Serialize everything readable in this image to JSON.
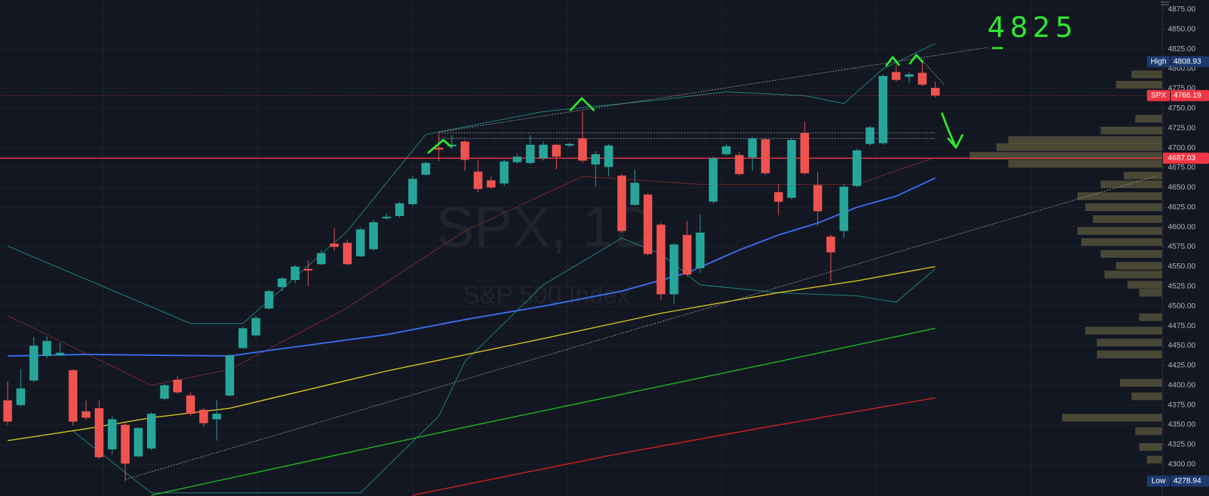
{
  "chart_data": {
    "type": "candlestick",
    "watermark_title": "SPX, 1D",
    "watermark_subtitle": "S&P 500 Index",
    "annotation": "4825",
    "up_color": "#26a69a",
    "down_color": "#ef5350",
    "grid": true,
    "ylim": [
      4260,
      4887
    ],
    "yticks": [
      {
        "value": 4300,
        "label": "4300.00"
      },
      {
        "value": 4325,
        "label": "4325.00"
      },
      {
        "value": 4350,
        "label": "4350.00"
      },
      {
        "value": 4375,
        "label": "4375.00"
      },
      {
        "value": 4400,
        "label": "4400.00"
      },
      {
        "value": 4425,
        "label": "4425.00"
      },
      {
        "value": 4450,
        "label": "4450.00"
      },
      {
        "value": 4475,
        "label": "4475.00"
      },
      {
        "value": 4500,
        "label": "4500.00"
      },
      {
        "value": 4525,
        "label": "4525.00"
      },
      {
        "value": 4550,
        "label": "4550.00"
      },
      {
        "value": 4575,
        "label": "4575.00"
      },
      {
        "value": 4600,
        "label": "4600.00"
      },
      {
        "value": 4625,
        "label": "4625.00"
      },
      {
        "value": 4650,
        "label": "4650.00"
      },
      {
        "value": 4675,
        "label": "4675.00"
      },
      {
        "value": 4700,
        "label": "4700.00"
      },
      {
        "value": 4725,
        "label": "4725.00"
      },
      {
        "value": 4750,
        "label": "4750.00"
      },
      {
        "value": 4775,
        "label": "4775.00"
      },
      {
        "value": 4800,
        "label": "4800.00"
      },
      {
        "value": 4825,
        "label": "4825.00"
      },
      {
        "value": 4850,
        "label": "4850.00"
      },
      {
        "value": 4875,
        "label": "4875.00"
      }
    ],
    "open": [
      4381,
      4375,
      4406,
      4437,
      4438,
      4419,
      4367,
      4371,
      4319,
      4350,
      4310,
      4320,
      4383,
      4407,
      4387,
      4369,
      4357,
      4387,
      4447,
      4463,
      4497,
      4524,
      4533,
      4547,
      4553,
      4579,
      4580,
      4563,
      4572,
      4611,
      4614,
      4629,
      4666,
      4700,
      4702,
      4708,
      4670,
      4659,
      4655,
      4682,
      4681,
      4687,
      4704,
      4703,
      4712,
      4679,
      4676,
      4665,
      4628,
      4641,
      4603,
      4515,
      4590,
      4548,
      4632,
      4692,
      4691,
      4688,
      4711,
      4644,
      4637,
      4719,
      4653,
      4588,
      4595,
      4652,
      4705,
      4706,
      4796,
      4790,
      4795,
      4776
    ],
    "high": [
      4405,
      4420,
      4461,
      4462,
      4454,
      4420,
      4381,
      4381,
      4361,
      4352,
      4347,
      4366,
      4402,
      4412,
      4391,
      4371,
      4381,
      4439,
      4474,
      4488,
      4521,
      4537,
      4552,
      4558,
      4571,
      4599,
      4584,
      4599,
      4609,
      4617,
      4632,
      4664,
      4683,
      4718,
      4716,
      4710,
      4685,
      4664,
      4685,
      4693,
      4716,
      4708,
      4705,
      4707,
      4746,
      4696,
      4705,
      4667,
      4673,
      4643,
      4605,
      4580,
      4608,
      4616,
      4689,
      4705,
      4695,
      4714,
      4713,
      4654,
      4712,
      4733,
      4670,
      4590,
      4654,
      4699,
      4728,
      4793,
      4805,
      4796,
      4808.93,
      4784
    ],
    "low": [
      4350,
      4373,
      4404,
      4434,
      4437,
      4349,
      4356,
      4307,
      4313,
      4278.94,
      4309,
      4318,
      4381,
      4389,
      4361,
      4347,
      4330,
      4386,
      4446,
      4461,
      4496,
      4519,
      4529,
      4525,
      4552,
      4570,
      4552,
      4562,
      4570,
      4609,
      4612,
      4627,
      4665,
      4683,
      4698,
      4671,
      4644,
      4648,
      4652,
      4680,
      4679,
      4684,
      4673,
      4701,
      4681,
      4651,
      4664,
      4593,
      4627,
      4564,
      4508,
      4503,
      4537,
      4542,
      4630,
      4690,
      4665,
      4671,
      4666,
      4615,
      4635,
      4666,
      4602,
      4531,
      4586,
      4650,
      4703,
      4704,
      4784,
      4782,
      4778,
      4764
    ],
    "close": [
      4354,
      4396,
      4450,
      4456,
      4441,
      4354,
      4359,
      4309,
      4357,
      4301,
      4346,
      4364,
      4400,
      4391,
      4364,
      4352,
      4364,
      4438,
      4472,
      4485,
      4519,
      4535,
      4550,
      4545,
      4567,
      4575,
      4553,
      4597,
      4606,
      4613,
      4630,
      4661,
      4681,
      4698,
      4704,
      4685,
      4648,
      4650,
      4683,
      4689,
      4704,
      4704,
      4689,
      4705,
      4684,
      4692,
      4703,
      4595,
      4656,
      4566,
      4515,
      4578,
      4540,
      4593,
      4687,
      4702,
      4667,
      4712,
      4668,
      4632,
      4710,
      4668,
      4620,
      4568,
      4651,
      4697,
      4726,
      4791,
      4786,
      4793,
      4780,
      4766.19
    ],
    "overlays": [
      {
        "color": "#1d8a7e",
        "width": 1,
        "x": [
          0,
          14,
          18,
          26,
          32,
          41,
          50,
          55,
          61,
          64,
          67,
          71
        ],
        "values": [
          4576,
          4478,
          4478,
          4595,
          4717,
          4746,
          4761,
          4771,
          4766,
          4756,
          4800,
          4832
        ]
      },
      {
        "color": "#7a2a2a",
        "width": 1,
        "x": [
          0,
          11,
          17,
          26,
          35,
          44,
          53,
          59,
          65,
          71
        ],
        "values": [
          4488,
          4400,
          4420,
          4498,
          4595,
          4664,
          4654,
          4654,
          4654,
          4688
        ]
      },
      {
        "color": "#1d8a7e",
        "width": 1,
        "x": [
          5,
          11,
          27,
          33,
          35,
          41,
          47,
          50,
          53,
          59,
          65,
          68,
          71
        ],
        "values": [
          4342,
          4264,
          4264,
          4361,
          4430,
          4527,
          4586,
          4566,
          4527,
          4517,
          4513,
          4505,
          4547
        ]
      },
      {
        "color": "#3b6ef0",
        "width": 2,
        "x": [
          0,
          6,
          11,
          17,
          20,
          29,
          35,
          41,
          47,
          52,
          56,
          59,
          62,
          65,
          68,
          71
        ],
        "values": [
          4437,
          4439,
          4438,
          4437,
          4444,
          4464,
          4483,
          4500,
          4519,
          4542,
          4571,
          4590,
          4605,
          4625,
          4639,
          4662
        ]
      },
      {
        "color": "#d4c21c",
        "width": 1.5,
        "x": [
          0,
          6,
          11,
          17,
          29,
          41,
          50,
          59,
          65,
          71
        ],
        "values": [
          4330,
          4345,
          4359,
          4371,
          4418,
          4459,
          4491,
          4517,
          4532,
          4550
        ]
      },
      {
        "color": "#1fb51f",
        "width": 1.5,
        "x": [
          11,
          35,
          59,
          71
        ],
        "values": [
          4261,
          4347,
          4430,
          4472
        ]
      },
      {
        "color": "#d32020",
        "width": 1.5,
        "x": [
          31,
          46,
          58,
          71
        ],
        "values": [
          4261,
          4311,
          4347,
          4384
        ]
      }
    ],
    "trendlines": [
      {
        "color": "#9598a1",
        "x": [
          9,
          88
        ],
        "values": [
          4281,
          4665
        ]
      },
      {
        "color": "#9598a1",
        "x": [
          33,
          75
        ],
        "values": [
          4720,
          4827
        ]
      },
      {
        "color": "#9598a1",
        "x": [
          33,
          71
        ],
        "values": [
          4719,
          4719
        ]
      },
      {
        "color": "#9598a1",
        "x": [
          33,
          71
        ],
        "values": [
          4712,
          4712
        ]
      },
      {
        "color": "#9598a1",
        "x": [
          70,
          71.7
        ],
        "values": [
          4810,
          4780
        ]
      }
    ],
    "volume_profile": {
      "color": "rgba(118,112,70,0.55)",
      "levels": [
        4793,
        4780,
        4766,
        4737,
        4722,
        4710,
        4701,
        4690,
        4680,
        4665,
        4654,
        4639,
        4625,
        4610,
        4595,
        4581,
        4566,
        4551,
        4540,
        4527,
        4517,
        4486,
        4469,
        4454,
        4439,
        4403,
        4386,
        4359,
        4342,
        4322,
        4306
      ],
      "values": [
        40,
        60,
        20,
        35,
        80,
        200,
        215,
        250,
        200,
        50,
        80,
        110,
        100,
        90,
        110,
        105,
        80,
        60,
        75,
        45,
        30,
        30,
        100,
        85,
        85,
        55,
        40,
        130,
        35,
        30,
        20
      ]
    },
    "price_labels": [
      {
        "label": "High",
        "value": 4808.93,
        "color": "#1c3a6e"
      },
      {
        "label": "SPX",
        "value": 4766.19,
        "color": "#f23645",
        "line": "dotted"
      },
      {
        "value": 4687.03,
        "color": "#f23645",
        "line": "solid"
      },
      {
        "label": "Low",
        "value": 4278.94,
        "color": "#1c3a6e"
      }
    ]
  }
}
